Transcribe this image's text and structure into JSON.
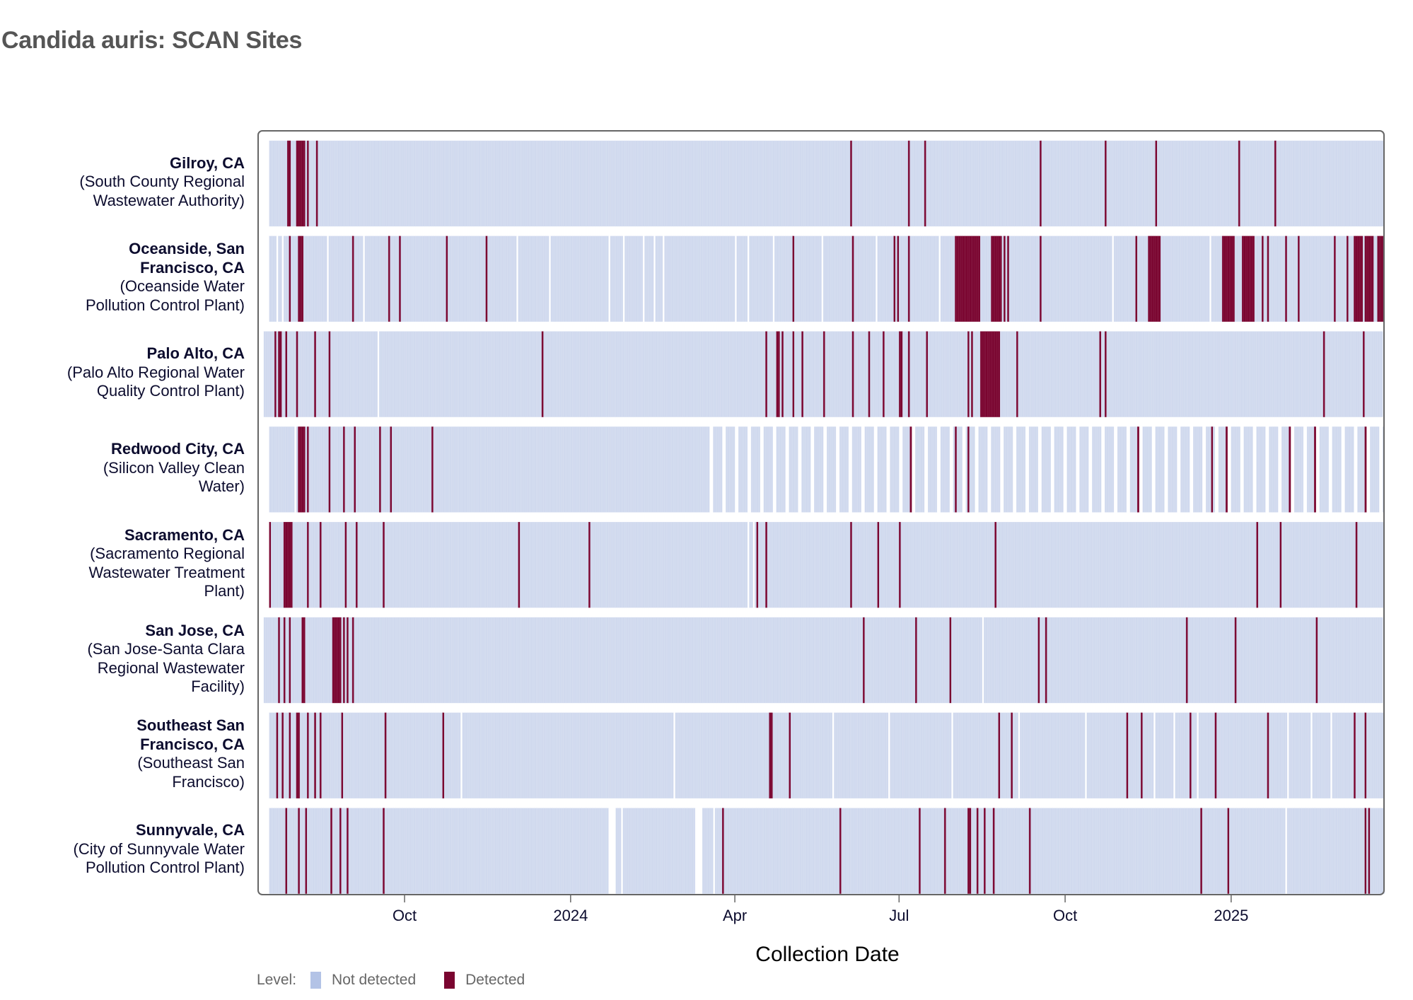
{
  "title": "Candida auris: SCAN Sites",
  "colors": {
    "not_detected": "#d0d9ee",
    "not_detected_legend": "#b3c3e6",
    "detected": "#7a0530",
    "frame": "#666666",
    "title": "#555555"
  },
  "legend": {
    "label": "Level:",
    "items": [
      {
        "name": "Not detected",
        "color": "#b3c3e6"
      },
      {
        "name": "Detected",
        "color": "#7a0530"
      }
    ]
  },
  "chart_data": {
    "type": "heatmap",
    "title": "Candida auris: SCAN Sites",
    "xlabel": "Collection Date",
    "ylabel": "",
    "x_start_date": "2023-07-15",
    "x_range_days": [
      0,
      621
    ],
    "x_ticks": [
      {
        "label": "Oct",
        "day": 78
      },
      {
        "label": "2024",
        "day": 170
      },
      {
        "label": "Apr",
        "day": 261
      },
      {
        "label": "Jul",
        "day": 352
      },
      {
        "label": "Oct",
        "day": 444
      },
      {
        "label": "2025",
        "day": 536
      }
    ],
    "levels": [
      "Not detected",
      "Detected"
    ],
    "legend_position": "bottom-left",
    "grid": false,
    "sites": [
      {
        "city": "Gilroy, CA",
        "facility": "(South County Regional Wastewater Authority)",
        "label_lines": [
          "Gilroy, CA",
          "(South County Regional",
          "Wastewater Authority)"
        ],
        "bold_lines": 1,
        "start_day": 3,
        "end_day": 620,
        "weekly_gaps_from_day": null,
        "missing_days": [],
        "detected_days": [
          13,
          14,
          18,
          19,
          20,
          21,
          22,
          24,
          29,
          325,
          357,
          366,
          430,
          466,
          494,
          540,
          560
        ]
      },
      {
        "city": "Oceanside, San Francisco, CA",
        "facility": "(Oceanside Water Pollution Control Plant)",
        "label_lines": [
          "Oceanside, San",
          "Francisco, CA",
          "(Oceanside Water",
          "Pollution Control Plant)"
        ],
        "bold_lines": 2,
        "start_day": 3,
        "end_day": 620,
        "weekly_gaps_from_day": null,
        "missing_days": [
          7,
          10,
          35,
          55,
          140,
          158,
          191,
          199,
          210,
          216,
          221,
          261,
          268,
          282,
          309,
          339,
          374,
          470,
          524
        ],
        "detected_days": [
          14,
          19,
          20,
          21,
          49,
          69,
          75,
          101,
          123,
          293,
          326,
          349,
          351,
          357,
          383,
          384,
          385,
          386,
          387,
          388,
          389,
          390,
          391,
          392,
          393,
          394,
          395,
          396,
          403,
          404,
          405,
          406,
          407,
          408,
          410,
          412,
          430,
          483,
          490,
          491,
          492,
          493,
          494,
          495,
          496,
          531,
          532,
          533,
          534,
          535,
          536,
          537,
          542,
          543,
          544,
          545,
          546,
          547,
          548,
          553,
          556,
          566,
          573,
          593,
          600,
          604,
          605,
          606,
          607,
          608,
          610,
          611,
          612,
          613,
          614,
          617,
          618,
          619,
          620
        ]
      },
      {
        "city": "Palo Alto, CA",
        "facility": "(Palo Alto Regional Water Quality Control Plant)",
        "label_lines": [
          "Palo Alto, CA",
          "(Palo Alto Regional Water",
          "Quality Control Plant)"
        ],
        "bold_lines": 1,
        "start_day": 0,
        "end_day": 619,
        "weekly_gaps_from_day": null,
        "missing_days": [
          63
        ],
        "detected_days": [
          6,
          8,
          9,
          12,
          18,
          28,
          36,
          154,
          278,
          284,
          285,
          287,
          293,
          298,
          310,
          326,
          335,
          343,
          352,
          353,
          357,
          367,
          390,
          392,
          397,
          398,
          399,
          400,
          401,
          402,
          403,
          404,
          405,
          406,
          407,
          417,
          463,
          466,
          587,
          609
        ]
      },
      {
        "city": "Redwood City, CA",
        "facility": "(Silicon Valley Clean Water)",
        "label_lines": [
          "Redwood City, CA",
          "(Silicon Valley Clean",
          "Water)"
        ],
        "bold_lines": 1,
        "start_day": 3,
        "end_day": 620,
        "weekly_gaps_from_day": 242,
        "missing_days": [
          17
        ],
        "detected_days": [
          19,
          20,
          21,
          22,
          24,
          36,
          44,
          50,
          64,
          70,
          93,
          358,
          383,
          390,
          402,
          422,
          484,
          492,
          525,
          533,
          568,
          570,
          582,
          610,
          619
        ]
      },
      {
        "city": "Sacramento, CA",
        "facility": "(Sacramento Regional Wastewater Treatment Plant)",
        "label_lines": [
          "Sacramento, CA",
          "(Sacramento Regional",
          "Wastewater Treatment",
          "Plant)"
        ],
        "bold_lines": 1,
        "start_day": 3,
        "end_day": 620,
        "weekly_gaps_from_day": null,
        "missing_days": [
          268,
          271
        ],
        "detected_days": [
          3,
          11,
          12,
          13,
          14,
          15,
          24,
          31,
          45,
          51,
          66,
          141,
          180,
          273,
          278,
          325,
          340,
          352,
          405,
          550,
          563,
          605
        ]
      },
      {
        "city": "San Jose, CA",
        "facility": "(San Jose-Santa Clara Regional Wastewater Facility)",
        "label_lines": [
          "San Jose, CA",
          "(San Jose-Santa Clara",
          "Regional Wastewater",
          "Facility)"
        ],
        "bold_lines": 1,
        "start_day": 0,
        "end_day": 619,
        "weekly_gaps_from_day": null,
        "missing_days": [
          398
        ],
        "detected_days": [
          8,
          11,
          14,
          21,
          22,
          38,
          39,
          40,
          41,
          42,
          44,
          46,
          49,
          332,
          361,
          380,
          429,
          433,
          511,
          538,
          583
        ]
      },
      {
        "city": "Southeast San Francisco, CA",
        "facility": "(Southeast San Francisco)",
        "label_lines": [
          "Southeast San",
          "Francisco, CA",
          "(Southeast San",
          "Francisco)"
        ],
        "bold_lines": 2,
        "start_day": 3,
        "end_day": 620,
        "weekly_gaps_from_day": null,
        "missing_days": [
          109,
          227,
          315,
          346,
          381,
          418,
          455,
          493,
          504,
          517,
          567,
          580,
          591
        ],
        "detected_days": [
          7,
          10,
          14,
          18,
          19,
          24,
          28,
          31,
          43,
          67,
          99,
          280,
          281,
          291,
          407,
          414,
          478,
          486,
          513,
          527,
          556,
          604,
          610
        ]
      },
      {
        "city": "Sunnyvale, CA",
        "facility": "(City of Sunnyvale Water Pollution Control Plant)",
        "label_lines": [
          "Sunnyvale, CA",
          "(City of Sunnyvale Water",
          "Pollution Control Plant)"
        ],
        "bold_lines": 1,
        "start_day": 3,
        "end_day": 620,
        "weekly_gaps_from_day": null,
        "missing_days": [
          191,
          192,
          193,
          194,
          198,
          239,
          240,
          241,
          242,
          249,
          566
        ],
        "detected_days": [
          12,
          19,
          23,
          37,
          42,
          46,
          66,
          254,
          319,
          363,
          377,
          390,
          391,
          395,
          399,
          404,
          424,
          519,
          534,
          610,
          612
        ]
      }
    ]
  }
}
